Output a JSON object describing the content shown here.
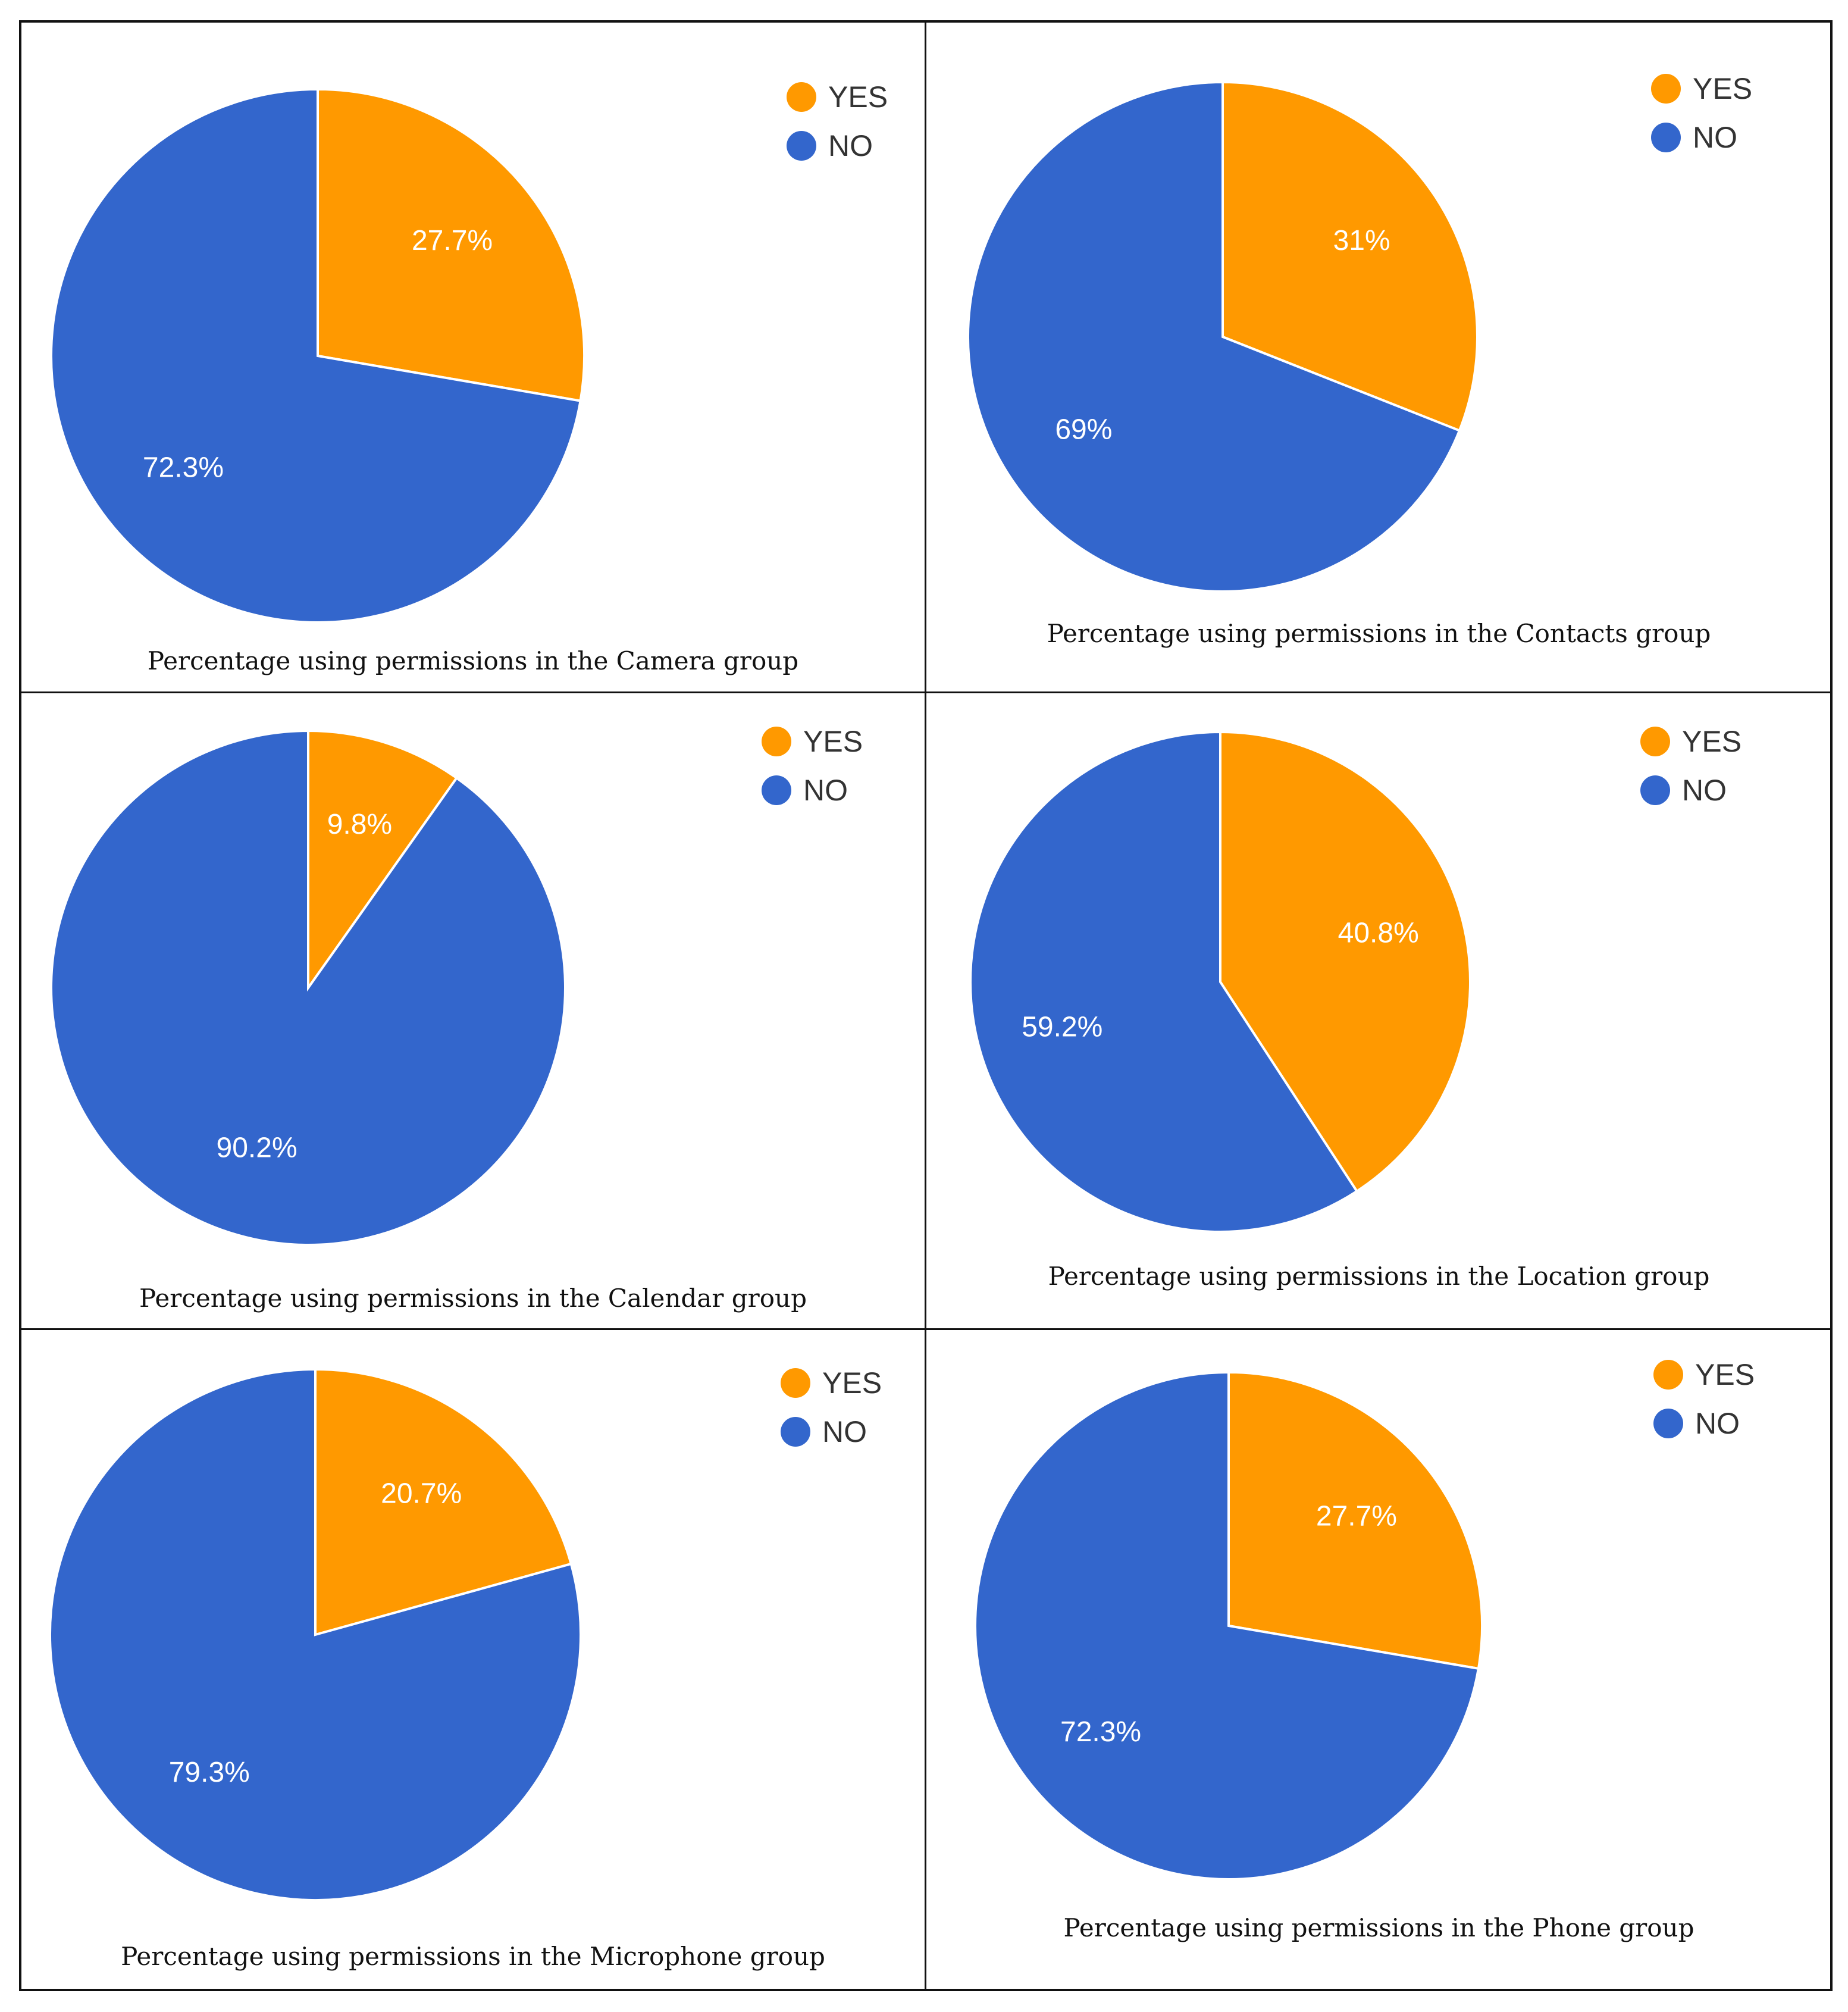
{
  "colors": {
    "yes": "#ff9900",
    "no": "#3366cc",
    "border": "#111111"
  },
  "chart_data": [
    {
      "type": "pie",
      "title": "Percentage using permissions in the Camera group",
      "slices": [
        {
          "name": "YES",
          "value": 27.7,
          "label": "27.7%"
        },
        {
          "name": "NO",
          "value": 72.3,
          "label": "72.3%"
        }
      ],
      "legend": [
        "YES",
        "NO"
      ],
      "legend_position": "top-right"
    },
    {
      "type": "pie",
      "title": "Percentage using permissions in the Contacts group",
      "slices": [
        {
          "name": "YES",
          "value": 31,
          "label": "31%"
        },
        {
          "name": "NO",
          "value": 69,
          "label": "69%"
        }
      ],
      "legend": [
        "YES",
        "NO"
      ],
      "legend_position": "top-right"
    },
    {
      "type": "pie",
      "title": "Percentage using permissions in the Calendar group",
      "slices": [
        {
          "name": "YES",
          "value": 9.8,
          "label": "9.8%"
        },
        {
          "name": "NO",
          "value": 90.2,
          "label": "90.2%"
        }
      ],
      "legend": [
        "YES",
        "NO"
      ],
      "legend_position": "top-right"
    },
    {
      "type": "pie",
      "title": "Percentage using permissions in the Location group",
      "slices": [
        {
          "name": "YES",
          "value": 40.8,
          "label": "40.8%"
        },
        {
          "name": "NO",
          "value": 59.2,
          "label": "59.2%"
        }
      ],
      "legend": [
        "YES",
        "NO"
      ],
      "legend_position": "top-right"
    },
    {
      "type": "pie",
      "title": "Percentage using permissions in the Microphone group",
      "slices": [
        {
          "name": "YES",
          "value": 20.7,
          "label": "20.7%"
        },
        {
          "name": "NO",
          "value": 79.3,
          "label": "79.3%"
        }
      ],
      "legend": [
        "YES",
        "NO"
      ],
      "legend_position": "top-right"
    },
    {
      "type": "pie",
      "title": "Percentage using permissions in the Phone group",
      "slices": [
        {
          "name": "YES",
          "value": 27.7,
          "label": "27.7%"
        },
        {
          "name": "NO",
          "value": 72.3,
          "label": "72.3%"
        }
      ],
      "legend": [
        "YES",
        "NO"
      ],
      "legend_position": "top-right"
    }
  ]
}
